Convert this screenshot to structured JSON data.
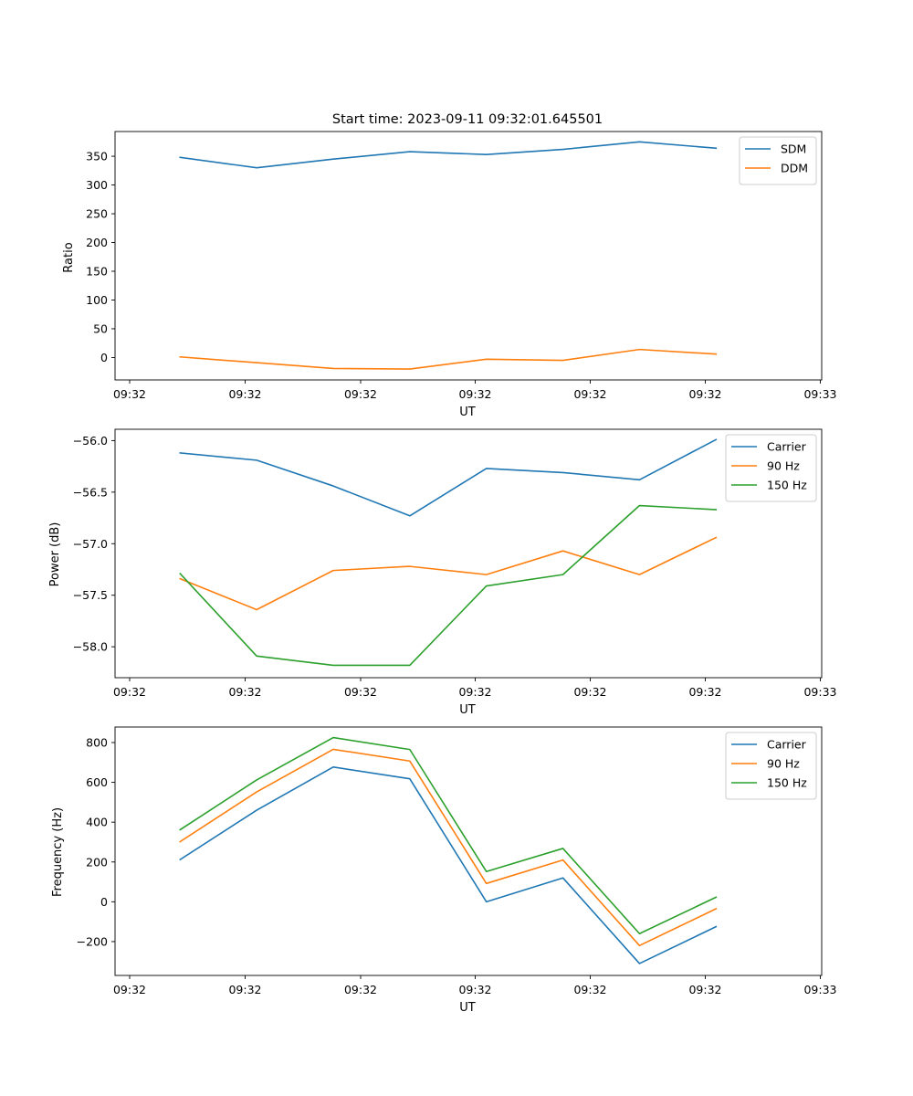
{
  "colors": {
    "c0": "#1f77b4",
    "c1": "#ff7f0e",
    "c2": "#2ca02c"
  },
  "chart_data": [
    {
      "type": "line",
      "title": "Start time: 2023-09-11 09:32:01.645501",
      "xlabel": "UT",
      "ylabel": "Ratio",
      "xticklabels": [
        "09:32",
        "09:32",
        "09:32",
        "09:32",
        "09:32",
        "09:32",
        "09:33"
      ],
      "xlim": [
        -0.85,
        8.38
      ],
      "ylim": [
        -39,
        393
      ],
      "yticks": [
        0,
        50,
        100,
        150,
        200,
        250,
        300,
        350
      ],
      "yticklabels": [
        "0",
        "50",
        "100",
        "150",
        "200",
        "250",
        "300",
        "350"
      ],
      "legend": "top-right",
      "x": [
        0,
        1,
        2,
        3,
        4,
        5,
        6,
        7
      ],
      "series": [
        {
          "name": "SDM",
          "color": "#1f77b4",
          "values": [
            348,
            330,
            345,
            358,
            353,
            362,
            375,
            364
          ]
        },
        {
          "name": "DDM",
          "color": "#ff7f0e",
          "values": [
            1,
            -9,
            -19,
            -20,
            -3,
            -5,
            14,
            6
          ]
        }
      ]
    },
    {
      "type": "line",
      "title": "",
      "xlabel": "UT",
      "ylabel": "Power (dB)",
      "xticklabels": [
        "09:32",
        "09:32",
        "09:32",
        "09:32",
        "09:32",
        "09:32",
        "09:33"
      ],
      "xlim": [
        -0.85,
        8.38
      ],
      "ylim": [
        -58.3,
        -55.89
      ],
      "yticks": [
        -58.0,
        -57.5,
        -57.0,
        -56.5,
        -56.0
      ],
      "yticklabels": [
        "−58.0",
        "−57.5",
        "−57.0",
        "−56.5",
        "−56.0"
      ],
      "legend": "top-right",
      "x": [
        0,
        1,
        2,
        3,
        4,
        5,
        6,
        7
      ],
      "series": [
        {
          "name": "Carrier",
          "color": "#1f77b4",
          "values": [
            -56.12,
            -56.19,
            -56.44,
            -56.73,
            -56.27,
            -56.31,
            -56.38,
            -55.99
          ]
        },
        {
          "name": "90 Hz",
          "color": "#ff7f0e",
          "values": [
            -57.34,
            -57.64,
            -57.26,
            -57.22,
            -57.3,
            -57.07,
            -57.3,
            -56.94
          ]
        },
        {
          "name": "150 Hz",
          "color": "#2ca02c",
          "values": [
            -57.29,
            -58.09,
            -58.18,
            -58.18,
            -57.41,
            -57.3,
            -56.63,
            -56.67
          ]
        }
      ]
    },
    {
      "type": "line",
      "title": "",
      "xlabel": "UT",
      "ylabel": "Frequency (Hz)",
      "xticklabels": [
        "09:32",
        "09:32",
        "09:32",
        "09:32",
        "09:32",
        "09:32",
        "09:33"
      ],
      "xlim": [
        -0.85,
        8.38
      ],
      "ylim": [
        -370,
        878
      ],
      "yticks": [
        -200,
        0,
        200,
        400,
        600,
        800
      ],
      "yticklabels": [
        "−200",
        "0",
        "200",
        "400",
        "600",
        "800"
      ],
      "legend": "top-right",
      "x": [
        0,
        1,
        2,
        3,
        4,
        5,
        6,
        7
      ],
      "series": [
        {
          "name": "Carrier",
          "color": "#1f77b4",
          "values": [
            212,
            460,
            677,
            618,
            0,
            120,
            -310,
            -125
          ]
        },
        {
          "name": "90 Hz",
          "color": "#ff7f0e",
          "values": [
            302,
            552,
            766,
            707,
            92,
            210,
            -220,
            -35
          ]
        },
        {
          "name": "150 Hz",
          "color": "#2ca02c",
          "values": [
            362,
            612,
            825,
            765,
            152,
            268,
            -160,
            23
          ]
        }
      ]
    }
  ]
}
